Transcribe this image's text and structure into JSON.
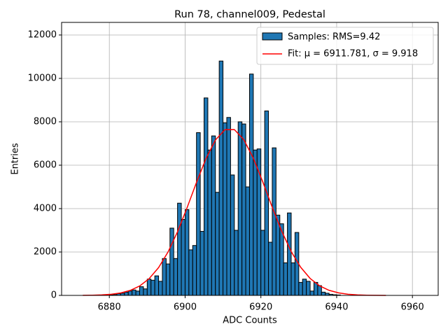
{
  "chart_data": {
    "type": "histogram",
    "title": "Run 78, channel009, Pedestal",
    "xlabel": "ADC Counts",
    "ylabel": "Entries",
    "bins": [
      6880,
      6881,
      6882,
      6883,
      6884,
      6885,
      6886,
      6887,
      6888,
      6889,
      6890,
      6891,
      6892,
      6893,
      6894,
      6895,
      6896,
      6897,
      6898,
      6899,
      6900,
      6901,
      6902,
      6903,
      6904,
      6905,
      6906,
      6907,
      6908,
      6909,
      6910,
      6911,
      6912,
      6913,
      6914,
      6915,
      6916,
      6917,
      6918,
      6919,
      6920,
      6921,
      6922,
      6923,
      6924,
      6925,
      6926,
      6927,
      6928,
      6929,
      6930,
      6931,
      6932,
      6933,
      6934,
      6935,
      6936,
      6937,
      6938,
      6939,
      6940,
      6941
    ],
    "counts": [
      20,
      40,
      80,
      100,
      150,
      200,
      250,
      200,
      400,
      300,
      750,
      700,
      900,
      650,
      1700,
      1450,
      3100,
      1700,
      4250,
      3500,
      3950,
      2100,
      2300,
      7500,
      2950,
      9100,
      6700,
      7350,
      4750,
      10800,
      7950,
      8200,
      5550,
      3000,
      8000,
      7900,
      5000,
      10200,
      6700,
      6750,
      3000,
      8500,
      2450,
      6800,
      3700,
      3300,
      1500,
      3800,
      1500,
      2900,
      600,
      750,
      650,
      200,
      600,
      450,
      150,
      100,
      50,
      30,
      20
    ],
    "histogram": {
      "name": "Samples: RMS=9.42",
      "color": "#1f77b4",
      "edgecolor": "#000000"
    },
    "fit": {
      "name": "Fit: μ = 6911.781, σ = 9.918",
      "color": "#ff0000",
      "x": [
        6873,
        6875.5,
        6878,
        6880.5,
        6883,
        6885.5,
        6888,
        6890.5,
        6893,
        6895.5,
        6898,
        6900.5,
        6903,
        6905.5,
        6908,
        6910.5,
        6913,
        6915.5,
        6918,
        6920.5,
        6923,
        6925.5,
        6928,
        6930.5,
        6933,
        6935.5,
        6938,
        6940.5,
        6943,
        6945.5,
        6948,
        6950.5,
        6953
      ],
      "values": [
        4,
        10,
        23,
        53,
        114,
        230,
        434,
        771,
        1282,
        2002,
        2933,
        4032,
        5204,
        6301,
        7161,
        7636,
        7642,
        7177,
        6325,
        5231,
        4060,
        2958,
        2021,
        1297,
        781,
        441,
        234,
        116,
        54,
        24,
        10,
        4,
        2
      ]
    },
    "xlim": [
      6867.4,
      6966.8
    ],
    "ylim": [
      0,
      12580
    ],
    "xticks": [
      6880,
      6900,
      6920,
      6940,
      6960
    ],
    "yticks": [
      0,
      2000,
      4000,
      6000,
      8000,
      10000,
      12000
    ],
    "grid": true,
    "legend": "upper right"
  }
}
